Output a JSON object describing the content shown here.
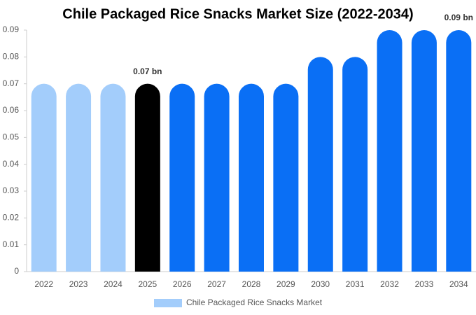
{
  "chart_data": {
    "type": "bar",
    "title": "Chile Packaged Rice Snacks Market Size (2022-2034)",
    "categories": [
      "2022",
      "2023",
      "2024",
      "2025",
      "2026",
      "2027",
      "2028",
      "2029",
      "2030",
      "2031",
      "2032",
      "2033",
      "2034"
    ],
    "series": [
      {
        "name": "Chile Packaged Rice Snacks Market",
        "color": "#a3cdfb",
        "colors": [
          "#a3cdfb",
          "#a3cdfb",
          "#a3cdfb",
          "#000000",
          "#0a6ff5",
          "#0a6ff5",
          "#0a6ff5",
          "#0a6ff5",
          "#0a6ff5",
          "#0a6ff5",
          "#0a6ff5",
          "#0a6ff5",
          "#0a6ff5"
        ],
        "values": [
          0.07,
          0.07,
          0.07,
          0.07,
          0.07,
          0.07,
          0.07,
          0.07,
          0.08,
          0.08,
          0.09,
          0.09,
          0.09
        ],
        "value_labels": [
          null,
          null,
          null,
          "0.07 bn",
          null,
          null,
          null,
          null,
          null,
          null,
          null,
          null,
          "0.09 bn"
        ]
      }
    ],
    "ylim": [
      0,
      0.09
    ],
    "yticks": [
      0,
      0.01,
      0.02,
      0.03,
      0.04,
      0.05,
      0.06,
      0.07,
      0.08,
      0.09
    ]
  }
}
